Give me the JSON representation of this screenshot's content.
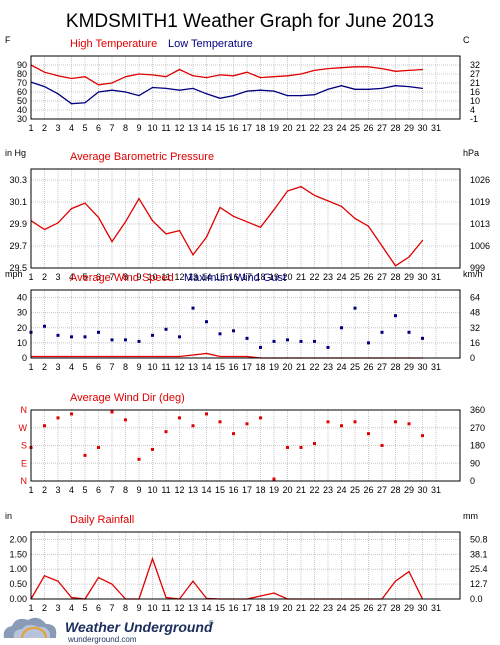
{
  "title": "KMDSMITH1 Weather Graph for June 2013",
  "colors": {
    "red": "#e00000",
    "blue": "#000080",
    "grid": "#c8c8c8",
    "frame": "#000000"
  },
  "footer": {
    "brand": "Weather Underground",
    "url": "wunderground.com"
  },
  "chart_data": [
    {
      "type": "line",
      "left_unit": "F",
      "right_unit": "C",
      "legend": [
        "High Temperature",
        "Low Temperature"
      ],
      "x_ticks": [
        1,
        2,
        3,
        4,
        5,
        6,
        7,
        8,
        9,
        10,
        11,
        12,
        13,
        14,
        15,
        16,
        17,
        18,
        19,
        20,
        21,
        22,
        23,
        24,
        25,
        26,
        27,
        28,
        29,
        30,
        31
      ],
      "ylim": [
        30,
        100
      ],
      "y_ticks_left": [
        "30",
        "40",
        "50",
        "60",
        "70",
        "80",
        "90"
      ],
      "y_ticks_right": [
        "-1",
        "4",
        "10",
        "16",
        "21",
        "27",
        "32"
      ],
      "grid": true,
      "series": [
        {
          "name": "High Temperature",
          "color": "#e00000",
          "x": [
            1,
            2,
            3,
            4,
            5,
            6,
            7,
            8,
            9,
            10,
            11,
            12,
            13,
            14,
            15,
            16,
            17,
            18,
            19,
            20,
            21,
            22,
            23,
            24,
            25,
            26,
            27,
            28,
            29,
            30
          ],
          "values": [
            90,
            82,
            78,
            75,
            77,
            68,
            70,
            77,
            80,
            79,
            77,
            85,
            78,
            76,
            79,
            78,
            82,
            76,
            77,
            78,
            80,
            84,
            86,
            87,
            88,
            88,
            86,
            83,
            84,
            85
          ]
        },
        {
          "name": "Low Temperature",
          "color": "#000080",
          "x": [
            1,
            2,
            3,
            4,
            5,
            6,
            7,
            8,
            9,
            10,
            11,
            12,
            13,
            14,
            15,
            16,
            17,
            18,
            19,
            20,
            21,
            22,
            23,
            24,
            25,
            26,
            27,
            28,
            29,
            30
          ],
          "values": [
            71,
            66,
            58,
            47,
            48,
            60,
            62,
            60,
            56,
            65,
            64,
            62,
            64,
            58,
            53,
            56,
            61,
            62,
            61,
            56,
            56,
            57,
            63,
            67,
            63,
            63,
            64,
            67,
            66,
            64
          ]
        }
      ]
    },
    {
      "type": "line",
      "left_unit": "in Hg",
      "right_unit": "hPa",
      "legend": [
        "Average Barometric Pressure"
      ],
      "x_ticks": [
        1,
        2,
        3,
        4,
        5,
        6,
        7,
        8,
        9,
        10,
        11,
        12,
        13,
        14,
        15,
        16,
        17,
        18,
        19,
        20,
        21,
        22,
        23,
        24,
        25,
        26,
        27,
        28,
        29,
        30,
        31
      ],
      "ylim": [
        29.5,
        30.4
      ],
      "y_ticks_left": [
        "29.5",
        "29.7",
        "29.9",
        "30.1",
        "30.3"
      ],
      "y_ticks_right": [
        "999",
        "1006",
        "1013",
        "1019",
        "1026"
      ],
      "grid": true,
      "series": [
        {
          "name": "Average Barometric Pressure",
          "color": "#e00000",
          "x": [
            1,
            2,
            3,
            4,
            5,
            6,
            7,
            8,
            9,
            10,
            11,
            12,
            13,
            14,
            15,
            16,
            17,
            18,
            19,
            20,
            21,
            22,
            23,
            24,
            25,
            26,
            27,
            28,
            29,
            30
          ],
          "values": [
            29.93,
            29.85,
            29.91,
            30.04,
            30.09,
            29.96,
            29.74,
            29.92,
            30.13,
            29.93,
            29.81,
            29.84,
            29.62,
            29.78,
            30.05,
            29.97,
            29.92,
            29.87,
            30.03,
            30.2,
            30.24,
            30.16,
            30.11,
            30.06,
            29.95,
            29.88,
            29.7,
            29.52,
            29.6,
            29.75
          ]
        }
      ]
    },
    {
      "type": "scatter",
      "left_unit": "mph",
      "right_unit": "km/h",
      "legend": [
        "Average Wind Speed",
        "Maximum Wind Gust"
      ],
      "x_ticks": [
        1,
        2,
        3,
        4,
        5,
        6,
        7,
        8,
        9,
        10,
        11,
        12,
        13,
        14,
        15,
        16,
        17,
        18,
        19,
        20,
        21,
        22,
        23,
        24,
        25,
        26,
        27,
        28,
        29,
        30,
        31
      ],
      "ylim": [
        0,
        45
      ],
      "y_ticks_left": [
        "0",
        "10",
        "20",
        "30",
        "40"
      ],
      "y_ticks_right": [
        "0",
        "16",
        "32",
        "48",
        "64"
      ],
      "grid": true,
      "series": [
        {
          "name": "Average Wind Speed",
          "color": "#e00000",
          "mode": "line",
          "x": [
            1,
            2,
            3,
            4,
            5,
            6,
            7,
            8,
            9,
            10,
            11,
            12,
            13,
            14,
            15,
            16,
            17,
            18,
            19,
            20,
            21,
            22,
            23,
            24,
            25,
            26,
            27,
            28,
            29,
            30
          ],
          "values": [
            1,
            1,
            1,
            1,
            1,
            1,
            1,
            1,
            1,
            1,
            1,
            1,
            2,
            3,
            1,
            1,
            1,
            0,
            0,
            0,
            0,
            0,
            0,
            0,
            0,
            0,
            0,
            0,
            0,
            0
          ]
        },
        {
          "name": "Maximum Wind Gust",
          "color": "#000080",
          "mode": "points",
          "x": [
            1,
            2,
            3,
            4,
            5,
            6,
            7,
            8,
            9,
            10,
            11,
            12,
            13,
            14,
            15,
            16,
            17,
            18,
            19,
            20,
            21,
            22,
            23,
            24,
            25,
            26,
            27,
            28,
            29,
            30
          ],
          "values": [
            17,
            21,
            15,
            14,
            14,
            17,
            12,
            12,
            11,
            15,
            19,
            14,
            33,
            24,
            16,
            18,
            13,
            7,
            11,
            12,
            11,
            11,
            7,
            20,
            33,
            10,
            17,
            28,
            17,
            13
          ]
        }
      ]
    },
    {
      "type": "scatter",
      "left_unit": "",
      "right_unit": "",
      "legend": [
        "Average Wind Dir (deg)"
      ],
      "x_ticks": [
        1,
        2,
        3,
        4,
        5,
        6,
        7,
        8,
        9,
        10,
        11,
        12,
        13,
        14,
        15,
        16,
        17,
        18,
        19,
        20,
        21,
        22,
        23,
        24,
        25,
        26,
        27,
        28,
        29,
        30,
        31
      ],
      "ylim": [
        0,
        360
      ],
      "y_ticks_left": [
        "N",
        "E",
        "S",
        "W",
        "N"
      ],
      "y_ticks_right": [
        "0",
        "90",
        "180",
        "270",
        "360"
      ],
      "grid": true,
      "series": [
        {
          "name": "Average Wind Dir (deg)",
          "color": "#e00000",
          "mode": "points",
          "x": [
            1,
            2,
            3,
            4,
            5,
            6,
            7,
            8,
            9,
            10,
            11,
            12,
            13,
            14,
            15,
            16,
            17,
            18,
            19,
            20,
            21,
            22,
            23,
            24,
            25,
            26,
            27,
            28,
            29,
            30
          ],
          "values": [
            170,
            280,
            320,
            340,
            130,
            170,
            350,
            310,
            110,
            160,
            250,
            320,
            280,
            340,
            300,
            240,
            290,
            320,
            10,
            170,
            170,
            190,
            300,
            280,
            300,
            240,
            180,
            300,
            290,
            230
          ]
        }
      ]
    },
    {
      "type": "line",
      "left_unit": "in",
      "right_unit": "mm",
      "legend": [
        "Daily Rainfall"
      ],
      "x_ticks": [
        1,
        2,
        3,
        4,
        5,
        6,
        7,
        8,
        9,
        10,
        11,
        12,
        13,
        14,
        15,
        16,
        17,
        18,
        19,
        20,
        21,
        22,
        23,
        24,
        25,
        26,
        27,
        28,
        29,
        30,
        31
      ],
      "ylim": [
        0,
        2.25
      ],
      "y_ticks_left": [
        "0.00",
        "0.50",
        "1.00",
        "1.50",
        "2.00"
      ],
      "y_ticks_right": [
        "0.0",
        "12.7",
        "25.4",
        "38.1",
        "50.8"
      ],
      "grid": true,
      "series": [
        {
          "name": "Daily Rainfall",
          "color": "#e00000",
          "x": [
            1,
            2,
            3,
            4,
            5,
            6,
            7,
            8,
            9,
            10,
            11,
            12,
            13,
            14,
            15,
            16,
            17,
            18,
            19,
            20,
            21,
            22,
            23,
            24,
            25,
            26,
            27,
            28,
            29,
            30
          ],
          "values": [
            0,
            0.78,
            0.6,
            0.05,
            0,
            0.72,
            0.5,
            0,
            0,
            1.35,
            0.05,
            0,
            0.6,
            0.02,
            0,
            0,
            0,
            0.1,
            0.2,
            0,
            0,
            0,
            0,
            0,
            0,
            0,
            0,
            0.6,
            0.92,
            0
          ]
        }
      ]
    }
  ]
}
